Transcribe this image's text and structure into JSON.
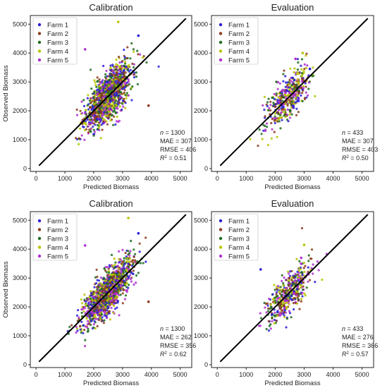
{
  "legend": {
    "entries": [
      {
        "name": "Farm 1",
        "color": "#2b1fd6"
      },
      {
        "name": "Farm 2",
        "color": "#8b3a1c"
      },
      {
        "name": "Farm 3",
        "color": "#1e6b1e"
      },
      {
        "name": "Farm 4",
        "color": "#b8c400"
      },
      {
        "name": "Farm 5",
        "color": "#b02fcf"
      }
    ],
    "placement": "top-left"
  },
  "chart_data": [
    {
      "type": "scatter",
      "title": "Calibration",
      "xlabel": "Predicted Biomass",
      "ylabel": "Observed Biomass",
      "xlim": [
        -200,
        5400
      ],
      "ylim": [
        -100,
        5300
      ],
      "x_ticks": [
        "0",
        "1000",
        "2000",
        "3000",
        "4000",
        "5000"
      ],
      "y_ticks": [
        "0",
        "1000",
        "2000",
        "3000",
        "4000",
        "5000"
      ],
      "one_to_one_line": [
        [
          100,
          100
        ],
        [
          5200,
          5200
        ]
      ],
      "stats": {
        "n": "= 1300",
        "mae": "MAE = 307",
        "rmse": "RMSE = 406",
        "r2": "= 0.51"
      },
      "series_summary": {
        "n_points": 1300,
        "x_center": 2500,
        "x_spread": 380,
        "slope": 0.95,
        "noise": 400,
        "seed": 11
      },
      "outliers": [
        [
          2850,
          5080
        ],
        [
          1700,
          4130
        ],
        [
          3550,
          4600
        ],
        [
          3900,
          2180
        ]
      ]
    },
    {
      "type": "scatter",
      "title": "Evaluation",
      "xlabel": "Predicted Biomass",
      "ylabel": "",
      "xlim": [
        -200,
        5400
      ],
      "ylim": [
        -100,
        5300
      ],
      "x_ticks": [
        "0",
        "1000",
        "2000",
        "3000",
        "4000",
        "5000"
      ],
      "y_ticks": [
        "0",
        "1000",
        "2000",
        "3000",
        "4000",
        "5000"
      ],
      "one_to_one_line": [
        [
          100,
          100
        ],
        [
          5200,
          5200
        ]
      ],
      "stats": {
        "n": "= 433",
        "mae": "MAE = 307",
        "rmse": "RMSE = 403",
        "r2": "= 0.50"
      },
      "series_summary": {
        "n_points": 433,
        "x_center": 2450,
        "x_spread": 360,
        "slope": 0.95,
        "noise": 390,
        "seed": 23
      },
      "outliers": [
        [
          2950,
          4000
        ],
        [
          2700,
          3800
        ],
        [
          3200,
          3450
        ]
      ]
    },
    {
      "type": "scatter",
      "title": "Calibration",
      "xlabel": "Predicted Biomass",
      "ylabel": "Observed Biomass",
      "xlim": [
        -200,
        5400
      ],
      "ylim": [
        -100,
        5300
      ],
      "x_ticks": [
        "0",
        "1000",
        "2000",
        "3000",
        "4000",
        "5000"
      ],
      "y_ticks": [
        "0",
        "1000",
        "2000",
        "3000",
        "4000",
        "5000"
      ],
      "one_to_one_line": [
        [
          100,
          100
        ],
        [
          5200,
          5200
        ]
      ],
      "stats": {
        "n": "= 1300",
        "mae": "MAE = 262",
        "rmse": "RMSE = 356",
        "r2": "= 0.62"
      },
      "series_summary": {
        "n_points": 1300,
        "x_center": 2500,
        "x_spread": 430,
        "slope": 1.0,
        "noise": 350,
        "seed": 37
      },
      "outliers": [
        [
          3200,
          5080
        ],
        [
          1700,
          4130
        ],
        [
          3550,
          4550
        ],
        [
          3900,
          2180
        ]
      ]
    },
    {
      "type": "scatter",
      "title": "Evaluation",
      "xlabel": "Predicted Biomass",
      "ylabel": "",
      "xlim": [
        -200,
        5400
      ],
      "ylim": [
        -100,
        5300
      ],
      "x_ticks": [
        "0",
        "1000",
        "2000",
        "3000",
        "4000",
        "5000"
      ],
      "y_ticks": [
        "0",
        "1000",
        "2000",
        "3000",
        "4000",
        "5000"
      ],
      "one_to_one_line": [
        [
          100,
          100
        ],
        [
          5200,
          5200
        ]
      ],
      "stats": {
        "n": "= 433",
        "mae": "MAE = 276",
        "rmse": "RMSE = 366",
        "r2": "= 0.57"
      },
      "series_summary": {
        "n_points": 433,
        "x_center": 2450,
        "x_spread": 380,
        "slope": 1.0,
        "noise": 360,
        "seed": 51
      },
      "outliers": [
        [
          3000,
          4150
        ],
        [
          2900,
          3700
        ],
        [
          1500,
          3300
        ]
      ]
    }
  ]
}
